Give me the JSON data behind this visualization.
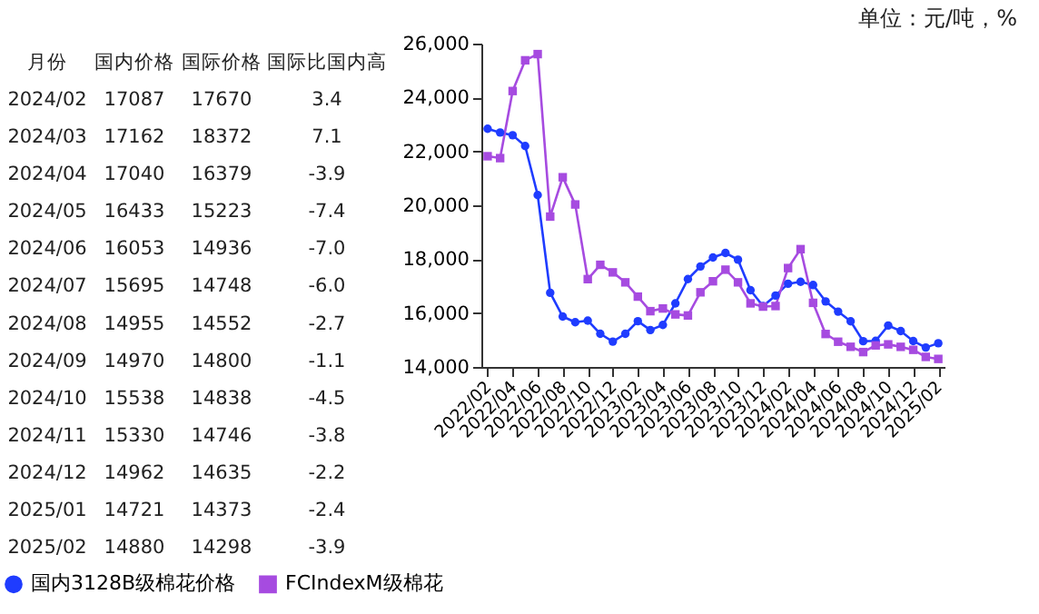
{
  "chart_data": [
    {
      "type": "other",
      "annotations": [
        "月份",
        "国内价格",
        "国际价格",
        "国际比国内高",
        "2024/02",
        "17087",
        "17670",
        "3.4",
        "2024/03",
        "17162",
        "18372",
        "7.1",
        "2024/04",
        "17040",
        "16379",
        "-3.9",
        "2024/05",
        "16433",
        "15223",
        "-7.4",
        "2024/06",
        "16053",
        "14936",
        "-7.0",
        "2024/07",
        "15695",
        "14748",
        "-6.0",
        "2024/08",
        "14955",
        "14552",
        "-2.7",
        "2024/09",
        "14970",
        "14800",
        "-1.1",
        "2024/10",
        "15538",
        "14838",
        "-4.5",
        "2024/11",
        "15330",
        "14746",
        "-3.8",
        "2024/12",
        "14962",
        "14635",
        "-2.2",
        "2025/01",
        "14721",
        "14373",
        "-2.4",
        "2025/02",
        "14880",
        "14298",
        "-3.9"
      ]
    },
    {
      "type": "line",
      "annotations": [
        "单位：元/吨，%"
      ],
      "categories": [
        "2022/02",
        null,
        "2022/04",
        null,
        "2022/06",
        null,
        "2022/08",
        null,
        "2022/10",
        null,
        "2022/12",
        null,
        "2023/02",
        null,
        "2023/04",
        null,
        "2023/06",
        null,
        "2023/08",
        null,
        "2023/10",
        null,
        "2023/12",
        null,
        "2024/02",
        null,
        "2024/04",
        null,
        "2024/06",
        null,
        "2024/08",
        null,
        "2024/10",
        null,
        "2024/12",
        null,
        "2025/02"
      ],
      "ylim": [
        14000,
        26000
      ],
      "yticks": [
        {
          "value": 14000,
          "label": "14,000"
        },
        {
          "value": 16000,
          "label": "16,000"
        },
        {
          "value": 18000,
          "label": "18,000"
        },
        {
          "value": 20000,
          "label": "20,000"
        },
        {
          "value": 22000,
          "label": "22,000"
        },
        {
          "value": 24000,
          "label": "24,000"
        },
        {
          "value": 26000,
          "label": "26,000"
        }
      ],
      "grid": false,
      "legend": "bottom",
      "series": [
        {
          "name": "国内3128B级棉花价格",
          "color": "#1f3cff",
          "marker": "circle",
          "values": [
            22840,
            22700,
            22600,
            22200,
            20380,
            16750,
            15870,
            15660,
            15720,
            15230,
            14940,
            15230,
            15700,
            15370,
            15560,
            16360,
            17260,
            17730,
            18060,
            18230,
            17980,
            16850,
            16260,
            16650,
            17087,
            17162,
            17040,
            16433,
            16053,
            15695,
            14955,
            14970,
            15538,
            15330,
            14962,
            14721,
            14880
          ]
        },
        {
          "name": "FCIndexM级棉花",
          "color": "#a64be0",
          "marker": "square",
          "values": [
            21820,
            21750,
            24240,
            25380,
            25610,
            19580,
            21040,
            20030,
            17260,
            17790,
            17510,
            17140,
            16610,
            16070,
            16170,
            15950,
            15910,
            16770,
            17180,
            17610,
            17140,
            16360,
            16240,
            16260,
            17670,
            18372,
            16379,
            15223,
            14936,
            14748,
            14552,
            14800,
            14838,
            14746,
            14635,
            14373,
            14298
          ]
        }
      ]
    }
  ]
}
